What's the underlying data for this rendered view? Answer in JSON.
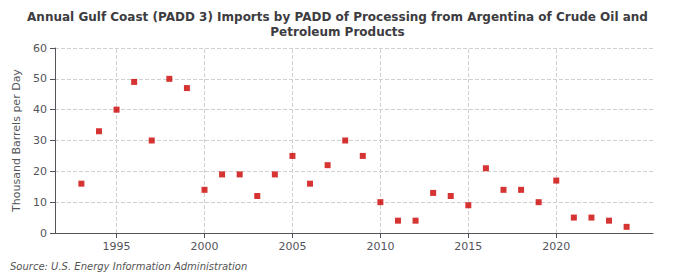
{
  "chart_data": {
    "type": "scatter",
    "title": "Annual Gulf Coast (PADD 3) Imports by PADD of Processing from Argentina of Crude Oil and\nPetroleum Products",
    "ylabel": "Thousand Barrels per Day",
    "source": "Source: U.S. Energy Information Administration",
    "x": [
      1993,
      1994,
      1995,
      1996,
      1997,
      1998,
      1999,
      2000,
      2001,
      2002,
      2003,
      2004,
      2005,
      2006,
      2007,
      2008,
      2009,
      2010,
      2011,
      2012,
      2013,
      2014,
      2015,
      2016,
      2017,
      2018,
      2019,
      2020,
      2021,
      2022,
      2023,
      2024
    ],
    "values": [
      16,
      33,
      40,
      49,
      30,
      50,
      47,
      14,
      19,
      19,
      12,
      19,
      25,
      16,
      22,
      30,
      25,
      10,
      4,
      4,
      13,
      12,
      9,
      21,
      14,
      14,
      10,
      17,
      5,
      5,
      4,
      2
    ],
    "color": "#cc0000",
    "marker": "square",
    "xlim": [
      1991.5,
      2025.5
    ],
    "xticks": [
      1995,
      2000,
      2005,
      2010,
      2015,
      2020
    ],
    "ylim": [
      0,
      60
    ],
    "yticks": [
      0,
      10,
      20,
      30,
      40,
      50,
      60
    ],
    "grid": true
  }
}
